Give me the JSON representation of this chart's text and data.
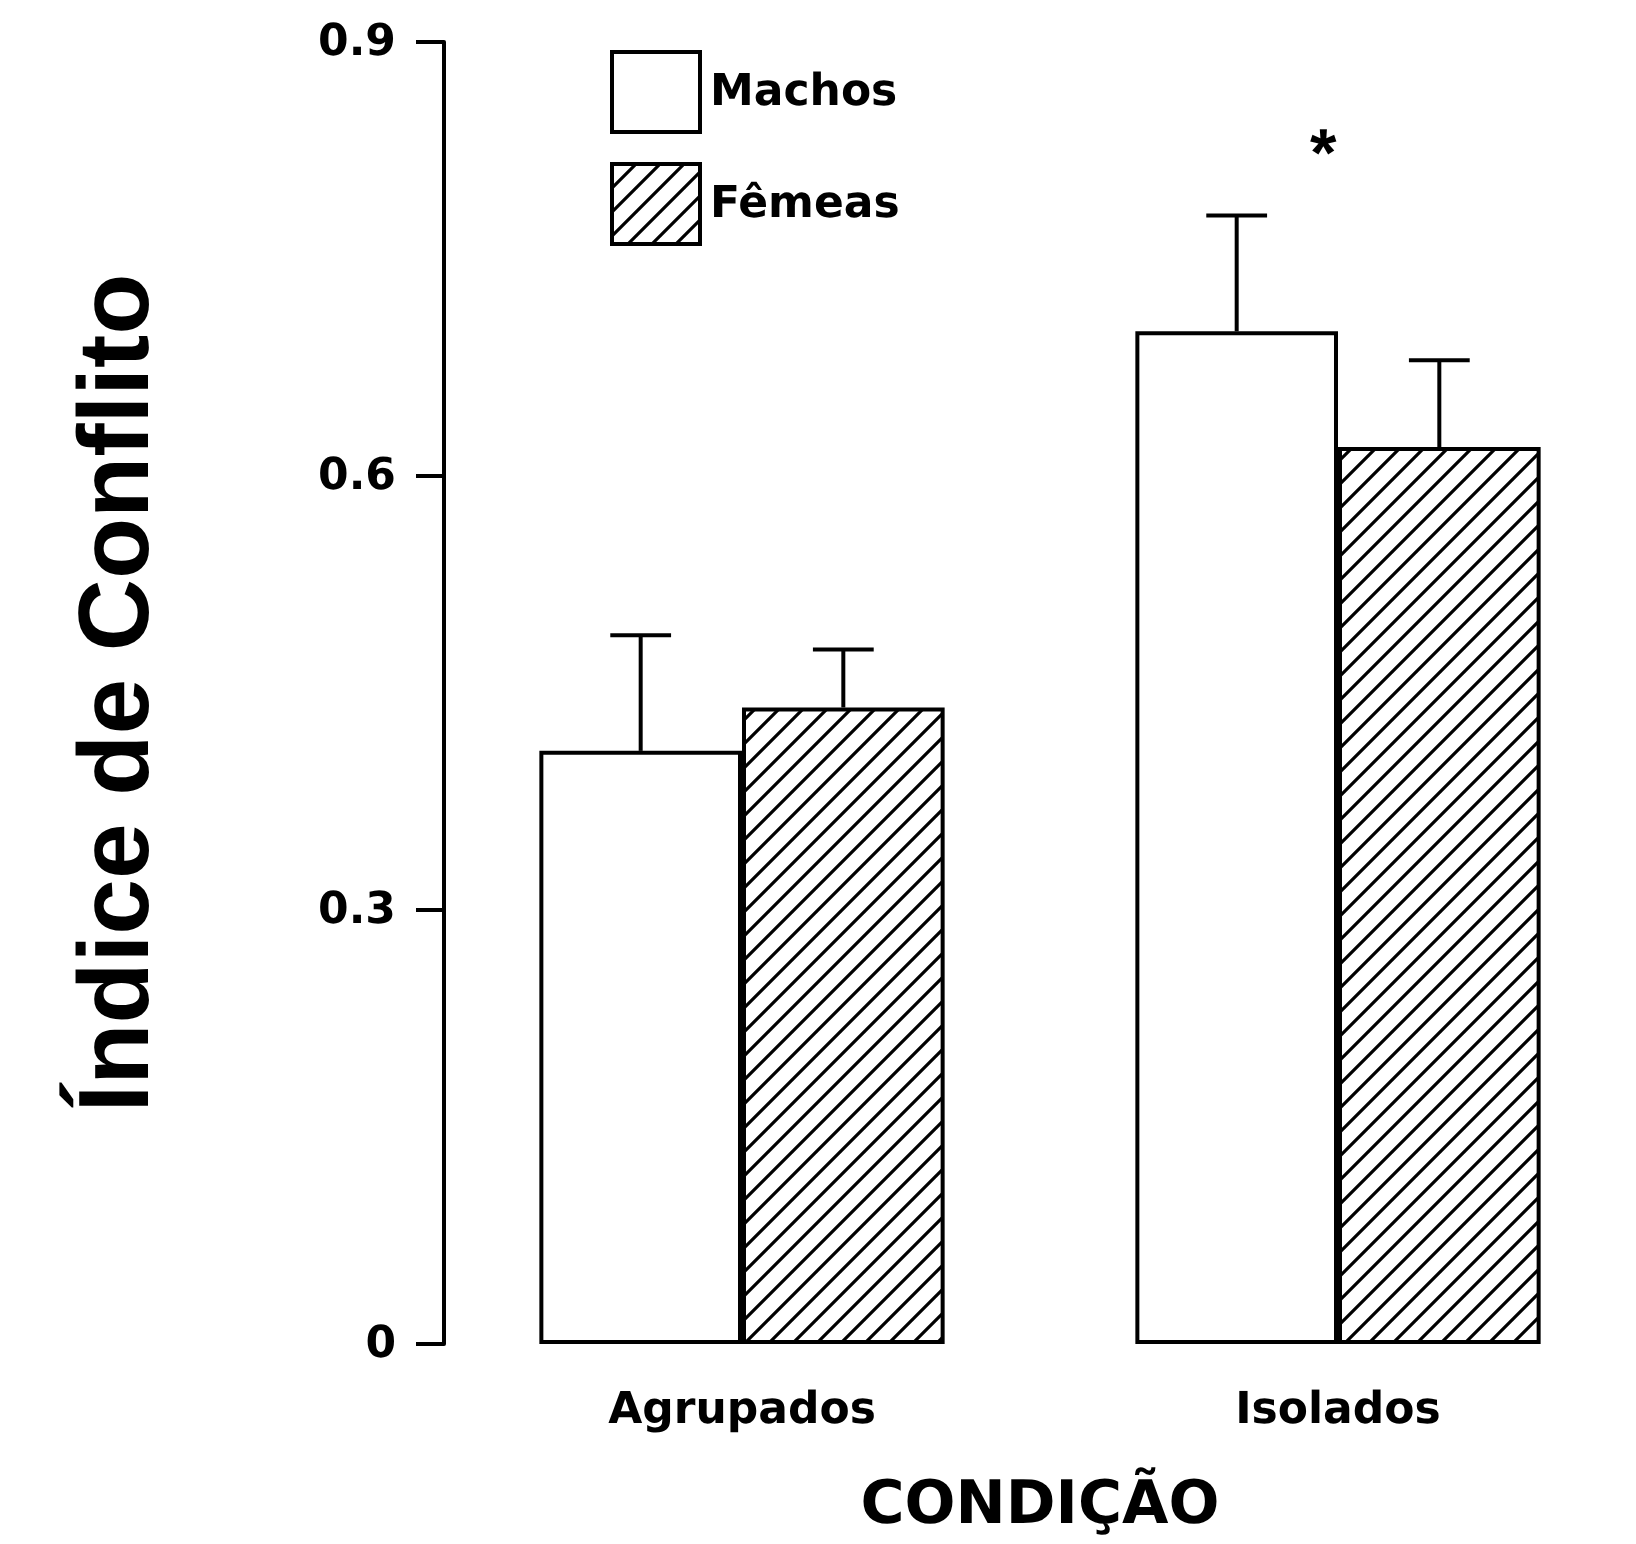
{
  "chart_data": {
    "type": "bar",
    "xlabel": "CONDIÇÃO",
    "ylabel": "Índice de Conflito",
    "categories": [
      "Agrupados",
      "Isolados"
    ],
    "series": [
      {
        "name": "Machos",
        "color": "#ffffff",
        "values": [
          0.41,
          0.7
        ],
        "errors": [
          [
            0.41,
            0.49
          ],
          [
            0.7,
            0.78
          ]
        ]
      },
      {
        "name": "Fêmeas",
        "color": "#000000",
        "values": [
          0.44,
          0.62
        ],
        "errors": [
          [
            0.44,
            0.48
          ],
          [
            0.62,
            0.68
          ]
        ]
      }
    ],
    "ylim": [
      0,
      0.9
    ],
    "yticks": [
      0,
      0.3,
      0.6,
      0.9
    ],
    "grid": false,
    "legend": "top left",
    "annotations": [
      "*"
    ]
  }
}
